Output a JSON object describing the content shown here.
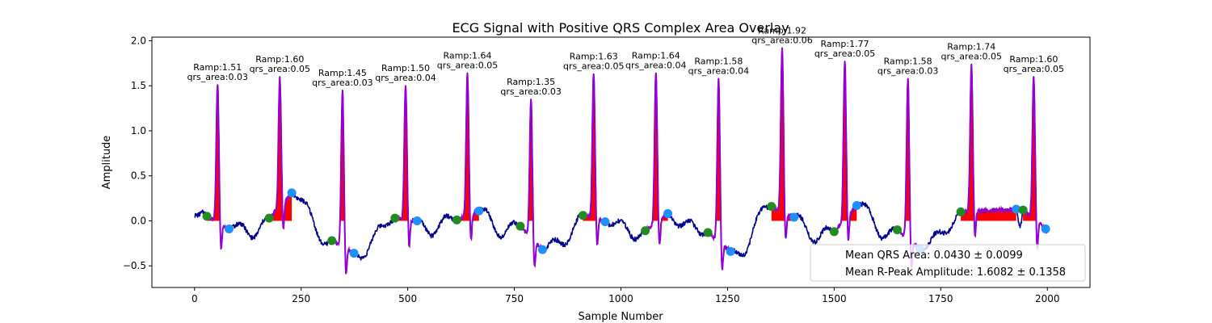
{
  "chart_data": {
    "type": "line",
    "title": "ECG Signal with Positive QRS Complex Area Overlay",
    "xlabel": "Sample Number",
    "ylabel": "Amplitude",
    "xlim": [
      -100,
      2100
    ],
    "ylim": [
      -0.74,
      2.04
    ],
    "x_ticks": [
      0,
      250,
      500,
      750,
      1000,
      1250,
      1500,
      1750,
      2000
    ],
    "y_ticks": [
      -0.5,
      0.0,
      0.5,
      1.0,
      1.5,
      2.0
    ],
    "x_tick_labels": [
      "0",
      "250",
      "500",
      "750",
      "1000",
      "1250",
      "1500",
      "1750",
      "2000"
    ],
    "y_tick_labels": [
      "−0.5",
      "0.0",
      "0.5",
      "1.0",
      "1.5",
      "2.0"
    ],
    "grid": false,
    "legend_placement": "lower-right",
    "legend_entries": [
      "Mean QRS Area: 0.0430 ± 0.0099",
      "Mean R-Peak Amplitude: 1.6082 ± 0.1358"
    ],
    "colors": {
      "signal": "#00008b",
      "qrs_segment": "#9400d3",
      "area_fill": "#ff0000",
      "onset_marker": "#228b22",
      "offset_marker": "#1e90ff"
    },
    "beats": [
      {
        "onset": [
          29,
          0.05
        ],
        "peak": [
          54,
          1.51
        ],
        "offset": [
          81,
          -0.09
        ],
        "label": [
          "Ramp:1.51",
          "qrs_area:0.03"
        ]
      },
      {
        "onset": [
          175,
          0.03
        ],
        "peak": [
          200,
          1.6
        ],
        "offset": [
          228,
          0.31
        ],
        "label": [
          "Ramp:1.60",
          "qrs_area:0.05"
        ]
      },
      {
        "onset": [
          322,
          -0.22
        ],
        "peak": [
          347,
          1.45
        ],
        "offset": [
          374,
          -0.36
        ],
        "label": [
          "Ramp:1.45",
          "qrs_area:0.03"
        ]
      },
      {
        "onset": [
          470,
          0.03
        ],
        "peak": [
          495,
          1.5
        ],
        "offset": [
          522,
          0.0
        ],
        "label": [
          "Ramp:1.50",
          "qrs_area:0.04"
        ]
      },
      {
        "onset": [
          615,
          0.01
        ],
        "peak": [
          640,
          1.64
        ],
        "offset": [
          667,
          0.11
        ],
        "label": [
          "Ramp:1.64",
          "qrs_area:0.05"
        ]
      },
      {
        "onset": [
          764,
          -0.06
        ],
        "peak": [
          789,
          1.35
        ],
        "offset": [
          816,
          -0.32
        ],
        "label": [
          "Ramp:1.35",
          "qrs_area:0.03"
        ]
      },
      {
        "onset": [
          911,
          0.06
        ],
        "peak": [
          936,
          1.63
        ],
        "offset": [
          963,
          -0.01
        ],
        "label": [
          "Ramp:1.63",
          "qrs_area:0.05"
        ]
      },
      {
        "onset": [
          1057,
          -0.11
        ],
        "peak": [
          1082,
          1.64
        ],
        "offset": [
          1110,
          0.08
        ],
        "label": [
          "Ramp:1.64",
          "qrs_area:0.04"
        ]
      },
      {
        "onset": [
          1204,
          -0.13
        ],
        "peak": [
          1229,
          1.58
        ],
        "offset": [
          1257,
          -0.34
        ],
        "label": [
          "Ramp:1.58",
          "qrs_area:0.04"
        ]
      },
      {
        "onset": [
          1353,
          0.16
        ],
        "peak": [
          1378,
          1.92
        ],
        "offset": [
          1406,
          0.04
        ],
        "label": [
          "Ramp:1.92",
          "qrs_area:0.06"
        ]
      },
      {
        "onset": [
          1500,
          -0.12
        ],
        "peak": [
          1525,
          1.77
        ],
        "offset": [
          1553,
          0.17
        ],
        "label": [
          "Ramp:1.77",
          "qrs_area:0.05"
        ]
      },
      {
        "onset": [
          1648,
          -0.1
        ],
        "peak": [
          1673,
          1.58
        ],
        "offset": [
          1701,
          -0.31
        ],
        "label": [
          "Ramp:1.58",
          "qrs_area:0.03"
        ]
      },
      {
        "onset": [
          1797,
          0.1
        ],
        "peak": [
          1822,
          1.74
        ],
        "offset": [
          1927,
          0.13
        ],
        "label": [
          "Ramp:1.74",
          "qrs_area:0.05"
        ]
      },
      {
        "onset": [
          1943,
          0.12
        ],
        "peak": [
          1968,
          1.6
        ],
        "offset": [
          1996,
          -0.09
        ],
        "label": [
          "Ramp:1.60",
          "qrs_area:0.05"
        ]
      }
    ]
  }
}
